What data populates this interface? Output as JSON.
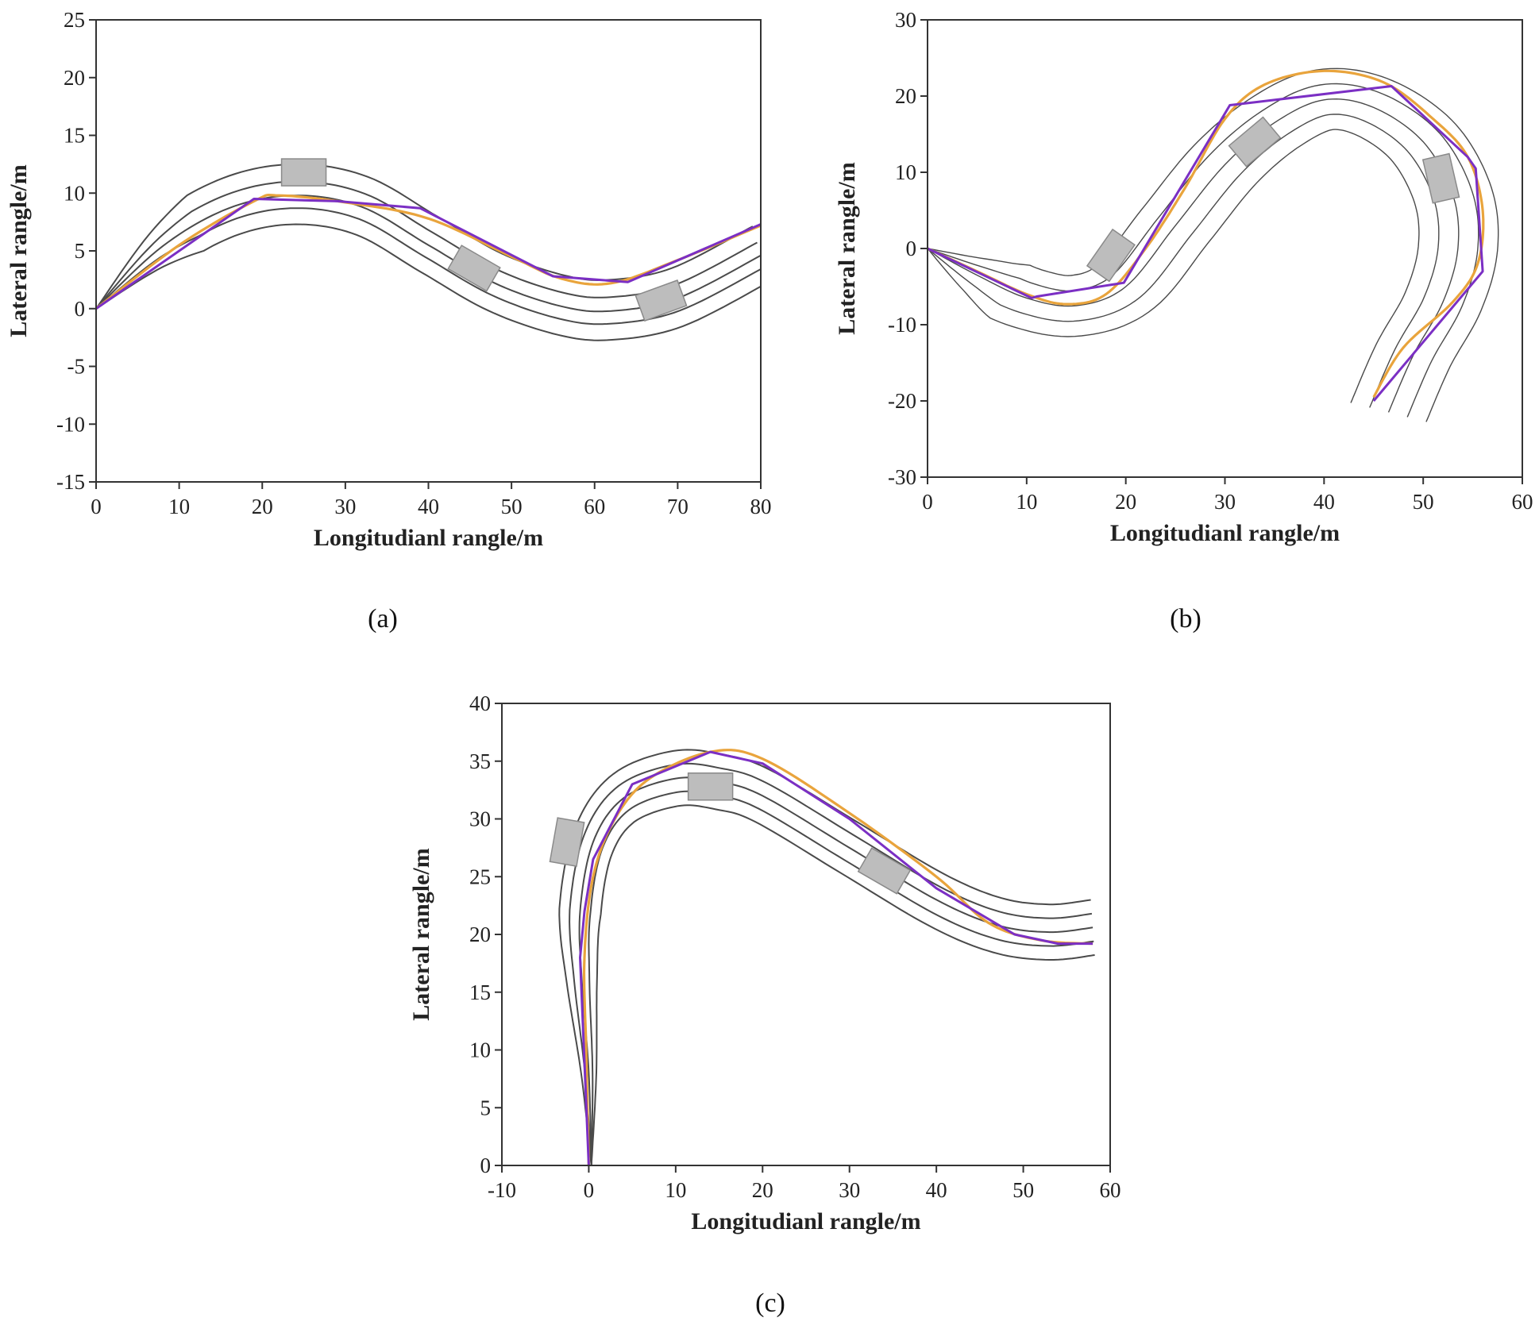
{
  "colors": {
    "lane": "#4a4a4a",
    "reference": "#e9a43c",
    "planned": "#7b2fc4",
    "vehicle": "#bdbdbd",
    "vehicle_edge": "#8a8a8a"
  },
  "chart_data": [
    {
      "type": "line",
      "panel_label": "(a)",
      "xlabel": "Longitudianl rangle/m",
      "ylabel": "Lateral rangle/m",
      "xlim": [
        0,
        80
      ],
      "ylim": [
        -15,
        25
      ],
      "xticks": [
        "0",
        "10",
        "20",
        "30",
        "40",
        "50",
        "60",
        "70",
        "80"
      ],
      "yticks": [
        "-15",
        "-10",
        "-5",
        "0",
        "5",
        "10",
        "15",
        "20",
        "25"
      ],
      "grid": false,
      "lanes": {
        "centerline": [
          [
            0,
            0
          ],
          [
            8,
            5.4
          ],
          [
            16,
            8.7
          ],
          [
            24,
            9.8
          ],
          [
            32,
            8.8
          ],
          [
            40,
            5.5
          ],
          [
            48,
            2.2
          ],
          [
            56,
            0.2
          ],
          [
            62,
            -0.2
          ],
          [
            70,
            0.9
          ],
          [
            80,
            4.6
          ]
        ],
        "offsets_m": [
          2.7,
          1.2,
          0,
          -1.1,
          -2.5
        ]
      },
      "reference_path": [
        [
          0,
          0
        ],
        [
          10,
          5.5
        ],
        [
          19,
          9.3
        ],
        [
          22,
          9.8
        ],
        [
          30,
          9.2
        ],
        [
          40,
          7.8
        ],
        [
          50,
          4.5
        ],
        [
          56,
          2.6
        ],
        [
          62,
          2.2
        ],
        [
          70,
          4.2
        ],
        [
          80,
          7.2
        ]
      ],
      "planned_path": [
        [
          0,
          0
        ],
        [
          19,
          9.5
        ],
        [
          29,
          9.3
        ],
        [
          39,
          8.7
        ],
        [
          55,
          2.8
        ],
        [
          64,
          2.3
        ],
        [
          80,
          7.3
        ]
      ],
      "obstacles": [
        {
          "x": 25,
          "y": 11.8,
          "heading_deg": 0
        },
        {
          "x": 45.5,
          "y": 3.5,
          "heading_deg": -30
        },
        {
          "x": 68,
          "y": 0.7,
          "heading_deg": 20
        }
      ]
    },
    {
      "type": "line",
      "panel_label": "(b)",
      "xlabel": "Longitudianl rangle/m",
      "ylabel": "Lateral rangle/m",
      "xlim": [
        0,
        60
      ],
      "ylim": [
        -30,
        30
      ],
      "xticks": [
        "0",
        "10",
        "20",
        "30",
        "40",
        "50",
        "60"
      ],
      "yticks": [
        "-30",
        "-20",
        "-10",
        "0",
        "10",
        "20",
        "30"
      ],
      "grid": false,
      "lanes": {
        "centerline": [
          [
            0,
            0
          ],
          [
            5,
            -3.5
          ],
          [
            10,
            -6.5
          ],
          [
            15,
            -7.5
          ],
          [
            20,
            -5
          ],
          [
            25,
            3
          ],
          [
            30,
            11
          ],
          [
            35,
            16.5
          ],
          [
            40,
            19.5
          ],
          [
            45,
            18.5
          ],
          [
            50,
            14
          ],
          [
            53,
            7
          ],
          [
            53.5,
            0
          ],
          [
            52,
            -7
          ],
          [
            49,
            -14
          ],
          [
            46.5,
            -21.5
          ]
        ],
        "offsets_m": [
          4,
          2,
          0,
          -2,
          -4
        ]
      },
      "reference_path": [
        [
          0,
          0
        ],
        [
          5,
          -3
        ],
        [
          10,
          -6
        ],
        [
          14,
          -7.3
        ],
        [
          18,
          -6
        ],
        [
          22,
          0
        ],
        [
          26,
          8
        ],
        [
          30,
          17
        ],
        [
          34,
          21.5
        ],
        [
          40,
          23.3
        ],
        [
          46,
          21.8
        ],
        [
          51,
          17
        ],
        [
          54.5,
          12
        ],
        [
          56,
          5
        ],
        [
          55.5,
          -2
        ],
        [
          53,
          -7
        ],
        [
          48,
          -13
        ],
        [
          45,
          -19.5
        ]
      ],
      "planned_path": [
        [
          0,
          0
        ],
        [
          10.5,
          -6.5
        ],
        [
          11,
          -6.3
        ],
        [
          19.8,
          -4.5
        ],
        [
          30.5,
          18.8
        ],
        [
          46.8,
          21.3
        ],
        [
          54.5,
          12
        ],
        [
          55.3,
          10.5
        ],
        [
          56,
          -3
        ],
        [
          45,
          -20
        ]
      ],
      "obstacles": [
        {
          "x": 18.5,
          "y": -0.9,
          "heading_deg": 55
        },
        {
          "x": 33,
          "y": 14,
          "heading_deg": 40
        },
        {
          "x": 51.8,
          "y": 9.2,
          "heading_deg": -77
        }
      ]
    },
    {
      "type": "line",
      "panel_label": "(c)",
      "xlabel": "Longitudianl rangle/m",
      "ylabel": "Lateral rangle/m",
      "xlim": [
        -10,
        60
      ],
      "ylim": [
        0,
        40
      ],
      "xticks": [
        "-10",
        "0",
        "10",
        "20",
        "30",
        "40",
        "50",
        "60"
      ],
      "yticks": [
        "0",
        "5",
        "10",
        "15",
        "20",
        "25",
        "30",
        "35",
        "40"
      ],
      "grid": false,
      "lanes": {
        "centerline": [
          [
            0.3,
            0
          ],
          [
            0,
            8
          ],
          [
            -0.8,
            16
          ],
          [
            -1,
            22
          ],
          [
            0.5,
            28
          ],
          [
            4,
            31.8
          ],
          [
            10,
            33.5
          ],
          [
            15,
            33.2
          ],
          [
            20,
            32
          ],
          [
            30,
            27.5
          ],
          [
            40,
            23
          ],
          [
            47,
            20.8
          ],
          [
            53,
            20.2
          ],
          [
            58,
            20.6
          ]
        ],
        "offsets_m": [
          2.4,
          1.2,
          0,
          -1.2,
          -2.4
        ]
      },
      "reference_path": [
        [
          0,
          0
        ],
        [
          -0.3,
          10
        ],
        [
          -0.5,
          18
        ],
        [
          0.5,
          25
        ],
        [
          3,
          30
        ],
        [
          7,
          33.5
        ],
        [
          14,
          35.8
        ],
        [
          20,
          35.2
        ],
        [
          30,
          30.5
        ],
        [
          40,
          25
        ],
        [
          46,
          21
        ],
        [
          52,
          19.5
        ],
        [
          58,
          19.2
        ]
      ],
      "planned_path": [
        [
          0,
          0
        ],
        [
          -1,
          18
        ],
        [
          -0.5,
          22
        ],
        [
          0.5,
          26.5
        ],
        [
          5,
          33
        ],
        [
          14,
          35.8
        ],
        [
          20,
          34.8
        ],
        [
          30,
          30
        ],
        [
          40,
          24
        ],
        [
          49,
          20
        ],
        [
          54,
          19.2
        ],
        [
          58,
          19.2
        ]
      ],
      "obstacles": [
        {
          "x": -2.5,
          "y": 28,
          "heading_deg": 80
        },
        {
          "x": 14,
          "y": 32.8,
          "heading_deg": 0
        },
        {
          "x": 34,
          "y": 25.5,
          "heading_deg": -30
        }
      ]
    }
  ]
}
